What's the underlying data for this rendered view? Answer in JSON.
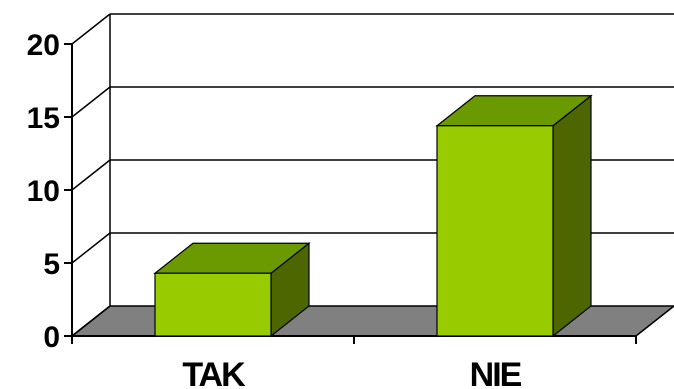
{
  "chart_data": {
    "type": "bar",
    "style": "3d-column",
    "categories": [
      "TAK",
      "NIE"
    ],
    "values": [
      4.3,
      14.4
    ],
    "ylim": [
      0,
      20
    ],
    "yticks": [
      "0",
      "5",
      "10",
      "15",
      "20"
    ],
    "grid": true,
    "legend": "none",
    "title": "",
    "xlabel": "",
    "ylabel": "",
    "colors": {
      "bar_front": "#99CC00",
      "bar_top": "#6B9900",
      "bar_side": "#4D6600",
      "floor": "#808080",
      "grid": "#000000"
    }
  }
}
